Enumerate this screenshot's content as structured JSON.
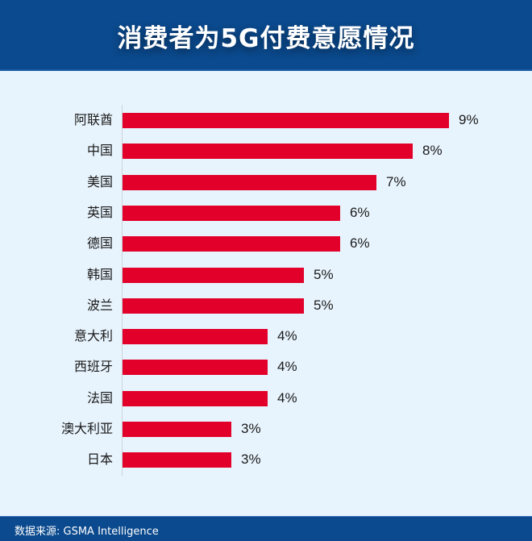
{
  "header": {
    "title": "消费者为5G付费意愿情况"
  },
  "footer": {
    "source": "数据来源: GSMA Intelligence"
  },
  "colors": {
    "header_bg": "#0b4a8e",
    "chart_bg": "#e8f4fd",
    "bar": "#e2002a"
  },
  "chart_data": {
    "type": "bar",
    "orientation": "horizontal",
    "title": "消费者为5G付费意愿情况",
    "categories": [
      "阿联酋",
      "中国",
      "美国",
      "英国",
      "德国",
      "韩国",
      "波兰",
      "意大利",
      "西班牙",
      "法国",
      "澳大利亚",
      "日本"
    ],
    "values": [
      9,
      8,
      7,
      6,
      6,
      5,
      5,
      4,
      4,
      4,
      3,
      3
    ],
    "value_labels": [
      "9%",
      "8%",
      "7%",
      "6%",
      "6%",
      "5%",
      "5%",
      "4%",
      "4%",
      "4%",
      "3%",
      "3%"
    ],
    "unit": "%",
    "xlabel": "",
    "ylabel": "",
    "grid": false,
    "legend": null,
    "source": "数据来源: GSMA Intelligence"
  }
}
